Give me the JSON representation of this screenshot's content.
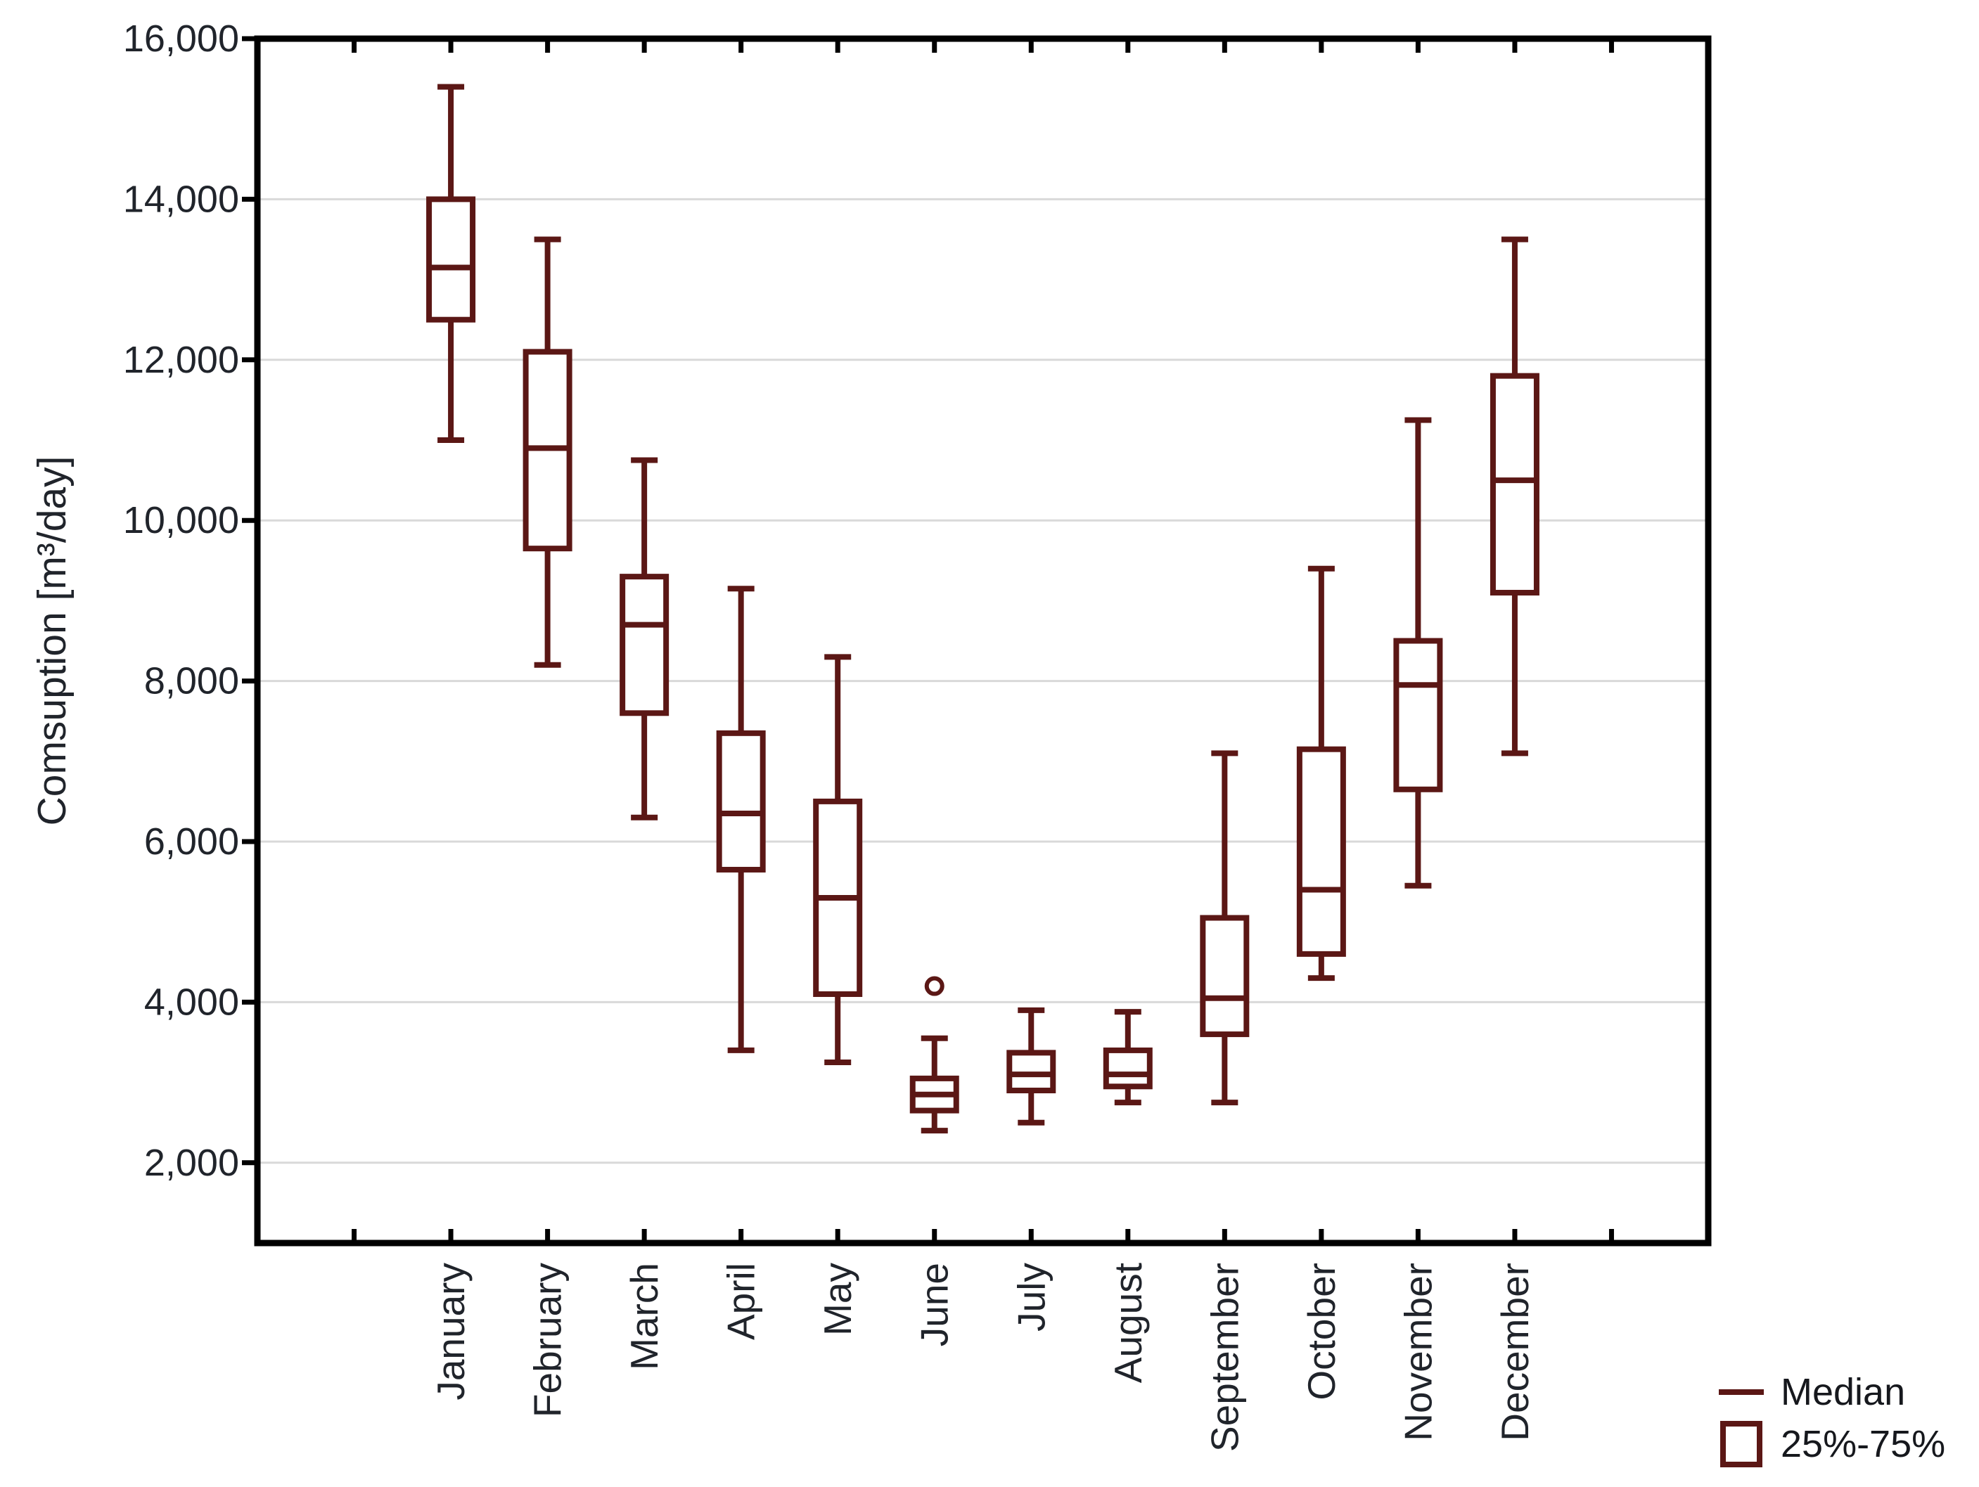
{
  "chart_data": {
    "type": "boxplot",
    "title": "",
    "xlabel": "",
    "ylabel": "Comsuption [m³/day]",
    "legend_position": "bottom-right",
    "grid": true,
    "y_axis": {
      "min": 1000,
      "max": 16000,
      "tick_step": 2000,
      "ticks": [
        {
          "value": 2000,
          "label": "2,000"
        },
        {
          "value": 4000,
          "label": "4,000"
        },
        {
          "value": 6000,
          "label": "6,000"
        },
        {
          "value": 8000,
          "label": "8,000"
        },
        {
          "value": 10000,
          "label": "10,000"
        },
        {
          "value": 12000,
          "label": "12,000"
        },
        {
          "value": 14000,
          "label": "14,000"
        },
        {
          "value": 16000,
          "label": "16,000"
        }
      ]
    },
    "categories": [
      "January",
      "February",
      "March",
      "April",
      "May",
      "June",
      "July",
      "August",
      "September",
      "October",
      "November",
      "December"
    ],
    "series": [
      {
        "month": "January",
        "low": 11000,
        "q1": 12500,
        "median": 13150,
        "q3": 14000,
        "high": 15400,
        "outliers": []
      },
      {
        "month": "February",
        "low": 8200,
        "q1": 9650,
        "median": 10900,
        "q3": 12100,
        "high": 13500,
        "outliers": []
      },
      {
        "month": "March",
        "low": 6300,
        "q1": 7600,
        "median": 8700,
        "q3": 9300,
        "high": 10750,
        "outliers": []
      },
      {
        "month": "April",
        "low": 3400,
        "q1": 5650,
        "median": 6350,
        "q3": 7350,
        "high": 9150,
        "outliers": []
      },
      {
        "month": "May",
        "low": 3250,
        "q1": 4100,
        "median": 5300,
        "q3": 6500,
        "high": 8300,
        "outliers": []
      },
      {
        "month": "June",
        "low": 2400,
        "q1": 2650,
        "median": 2850,
        "q3": 3050,
        "high": 3550,
        "outliers": [
          4200
        ]
      },
      {
        "month": "July",
        "low": 2500,
        "q1": 2900,
        "median": 3100,
        "q3": 3370,
        "high": 3900,
        "outliers": []
      },
      {
        "month": "August",
        "low": 2750,
        "q1": 2950,
        "median": 3100,
        "q3": 3400,
        "high": 3880,
        "outliers": []
      },
      {
        "month": "September",
        "low": 2750,
        "q1": 3600,
        "median": 4050,
        "q3": 5050,
        "high": 7100,
        "outliers": []
      },
      {
        "month": "October",
        "low": 4300,
        "q1": 4600,
        "median": 5400,
        "q3": 7150,
        "high": 9400,
        "outliers": []
      },
      {
        "month": "November",
        "low": 5450,
        "q1": 6650,
        "median": 7950,
        "q3": 8500,
        "high": 11250,
        "outliers": []
      },
      {
        "month": "December",
        "low": 7100,
        "q1": 9100,
        "median": 10500,
        "q3": 11800,
        "high": 13500,
        "outliers": []
      }
    ],
    "legend": [
      {
        "symbol": "median-line",
        "label": "Median"
      },
      {
        "symbol": "iqr-box",
        "label": "25%-75%"
      }
    ],
    "colors": {
      "box": "#5b1715",
      "axis": "#000000",
      "grid": "#d9d9d9",
      "text": "#20242b",
      "background": "#ffffff"
    }
  }
}
